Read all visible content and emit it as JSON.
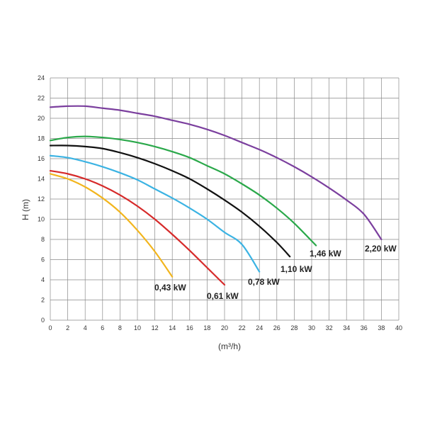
{
  "chart_data": {
    "type": "line",
    "title": "",
    "xlabel": "(m³/h)",
    "ylabel": "H (m)",
    "xlim": [
      0,
      40
    ],
    "ylim": [
      0,
      24
    ],
    "grid": true,
    "legend": "none",
    "x_ticks": [
      "0",
      "2",
      "4",
      "6",
      "8",
      "10",
      "12",
      "14",
      "16",
      "18",
      "20",
      "22",
      "24",
      "26",
      "28",
      "30",
      "32",
      "34",
      "36",
      "38",
      "40"
    ],
    "y_ticks": [
      "0",
      "2",
      "4",
      "6",
      "8",
      "10",
      "12",
      "14",
      "16",
      "18",
      "20",
      "22",
      "24"
    ],
    "series": [
      {
        "name": "0,43 kW",
        "color": "#f2b51d",
        "points": [
          [
            0,
            14.5
          ],
          [
            2,
            14.0
          ],
          [
            4,
            13.2
          ],
          [
            6,
            12.1
          ],
          [
            8,
            10.7
          ],
          [
            10,
            8.9
          ],
          [
            12,
            6.8
          ],
          [
            14,
            4.3
          ]
        ]
      },
      {
        "name": "0,61 kW",
        "color": "#d62a2a",
        "points": [
          [
            0,
            14.8
          ],
          [
            2,
            14.5
          ],
          [
            4,
            14.0
          ],
          [
            6,
            13.3
          ],
          [
            8,
            12.4
          ],
          [
            10,
            11.3
          ],
          [
            12,
            10.0
          ],
          [
            14,
            8.5
          ],
          [
            16,
            6.9
          ],
          [
            18,
            5.2
          ],
          [
            20,
            3.5
          ]
        ]
      },
      {
        "name": "0,78 kW",
        "color": "#3bb3e3",
        "points": [
          [
            0,
            16.3
          ],
          [
            2,
            16.1
          ],
          [
            4,
            15.7
          ],
          [
            6,
            15.2
          ],
          [
            8,
            14.6
          ],
          [
            10,
            13.9
          ],
          [
            12,
            13.0
          ],
          [
            14,
            12.1
          ],
          [
            16,
            11.1
          ],
          [
            18,
            10.0
          ],
          [
            20,
            8.7
          ],
          [
            22,
            7.5
          ],
          [
            24,
            4.8
          ]
        ]
      },
      {
        "name": "1,10 kW",
        "color": "#111111",
        "points": [
          [
            0,
            17.3
          ],
          [
            2,
            17.3
          ],
          [
            4,
            17.2
          ],
          [
            6,
            17.0
          ],
          [
            8,
            16.6
          ],
          [
            10,
            16.1
          ],
          [
            12,
            15.5
          ],
          [
            14,
            14.8
          ],
          [
            16,
            14.0
          ],
          [
            18,
            13.0
          ],
          [
            20,
            11.9
          ],
          [
            22,
            10.7
          ],
          [
            24,
            9.3
          ],
          [
            26,
            7.7
          ],
          [
            27.5,
            6.3
          ]
        ]
      },
      {
        "name": "1,46 kW",
        "color": "#2aa84a",
        "points": [
          [
            0,
            17.8
          ],
          [
            2,
            18.1
          ],
          [
            4,
            18.2
          ],
          [
            6,
            18.1
          ],
          [
            8,
            17.9
          ],
          [
            10,
            17.6
          ],
          [
            12,
            17.2
          ],
          [
            14,
            16.7
          ],
          [
            16,
            16.1
          ],
          [
            18,
            15.3
          ],
          [
            20,
            14.5
          ],
          [
            22,
            13.5
          ],
          [
            24,
            12.4
          ],
          [
            26,
            11.1
          ],
          [
            28,
            9.6
          ],
          [
            30.5,
            7.4
          ]
        ]
      },
      {
        "name": "2,20 kW",
        "color": "#7b3f9e",
        "points": [
          [
            0,
            21.1
          ],
          [
            2,
            21.2
          ],
          [
            4,
            21.2
          ],
          [
            6,
            21.0
          ],
          [
            8,
            20.8
          ],
          [
            10,
            20.5
          ],
          [
            12,
            20.2
          ],
          [
            14,
            19.8
          ],
          [
            16,
            19.4
          ],
          [
            18,
            18.9
          ],
          [
            20,
            18.3
          ],
          [
            22,
            17.6
          ],
          [
            24,
            16.9
          ],
          [
            26,
            16.1
          ],
          [
            28,
            15.2
          ],
          [
            30,
            14.2
          ],
          [
            32,
            13.1
          ],
          [
            34,
            11.9
          ],
          [
            36,
            10.5
          ],
          [
            38,
            8.0
          ]
        ]
      }
    ]
  }
}
